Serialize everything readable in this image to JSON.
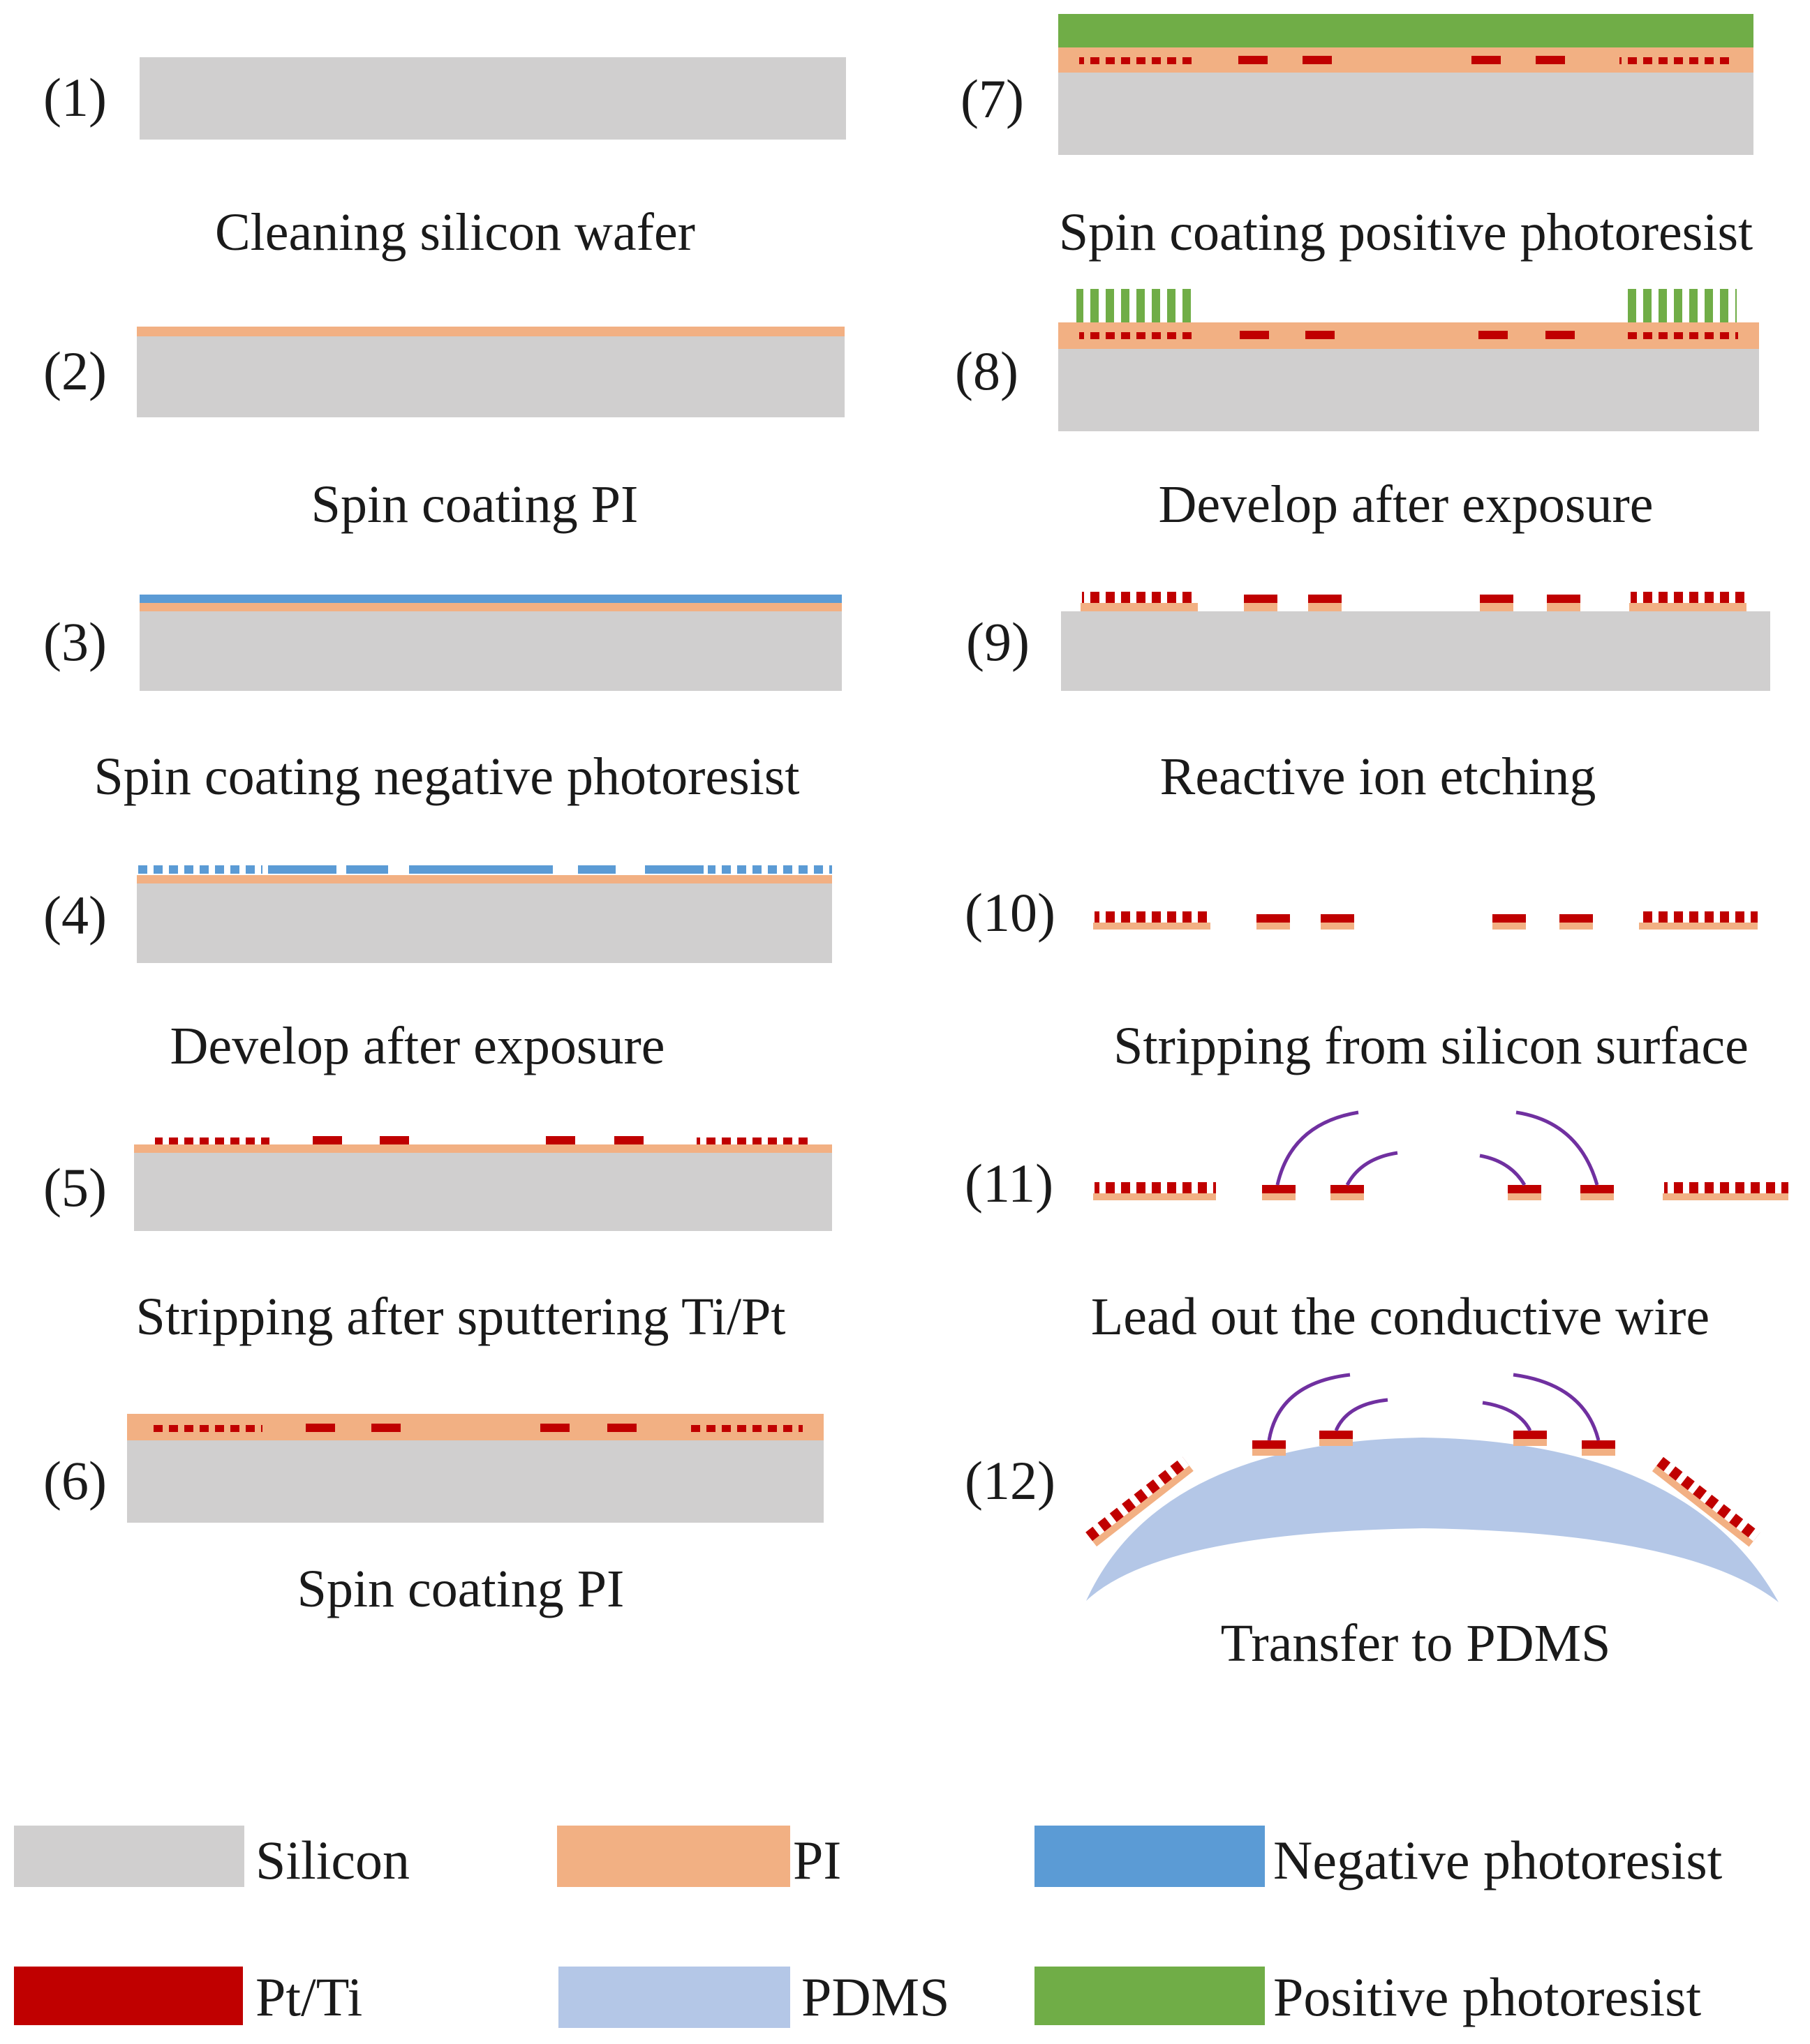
{
  "colors": {
    "silicon": "#d0cfcf",
    "pi": "#f2b083",
    "negative_photoresist": "#5b9bd5",
    "pt_ti": "#c00000",
    "pdms": "#b4c7e7",
    "positive_photoresist": "#70ad47",
    "wire": "#7030a0"
  },
  "steps": [
    {
      "number": "(1)",
      "caption": "Cleaning silicon wafer"
    },
    {
      "number": "(2)",
      "caption": "Spin coating PI"
    },
    {
      "number": "(3)",
      "caption": "Spin coating negative photoresist"
    },
    {
      "number": "(4)",
      "caption": "Develop after exposure"
    },
    {
      "number": "(5)",
      "caption": "Stripping after sputtering Ti/Pt"
    },
    {
      "number": "(6)",
      "caption": "Spin coating PI"
    },
    {
      "number": "(7)",
      "caption": "Spin coating positive photoresist"
    },
    {
      "number": "(8)",
      "caption": "Develop after exposure"
    },
    {
      "number": "(9)",
      "caption": "Reactive ion etching"
    },
    {
      "number": "(10)",
      "caption": "Stripping from silicon surface"
    },
    {
      "number": "(11)",
      "caption": "Lead out the conductive wire"
    },
    {
      "number": "(12)",
      "caption": "Transfer to PDMS"
    }
  ],
  "legend": [
    {
      "label": "Silicon"
    },
    {
      "label": "PI"
    },
    {
      "label": "Negative photoresist"
    },
    {
      "label": "Pt/Ti"
    },
    {
      "label": "PDMS"
    },
    {
      "label": "Positive photoresist"
    }
  ]
}
